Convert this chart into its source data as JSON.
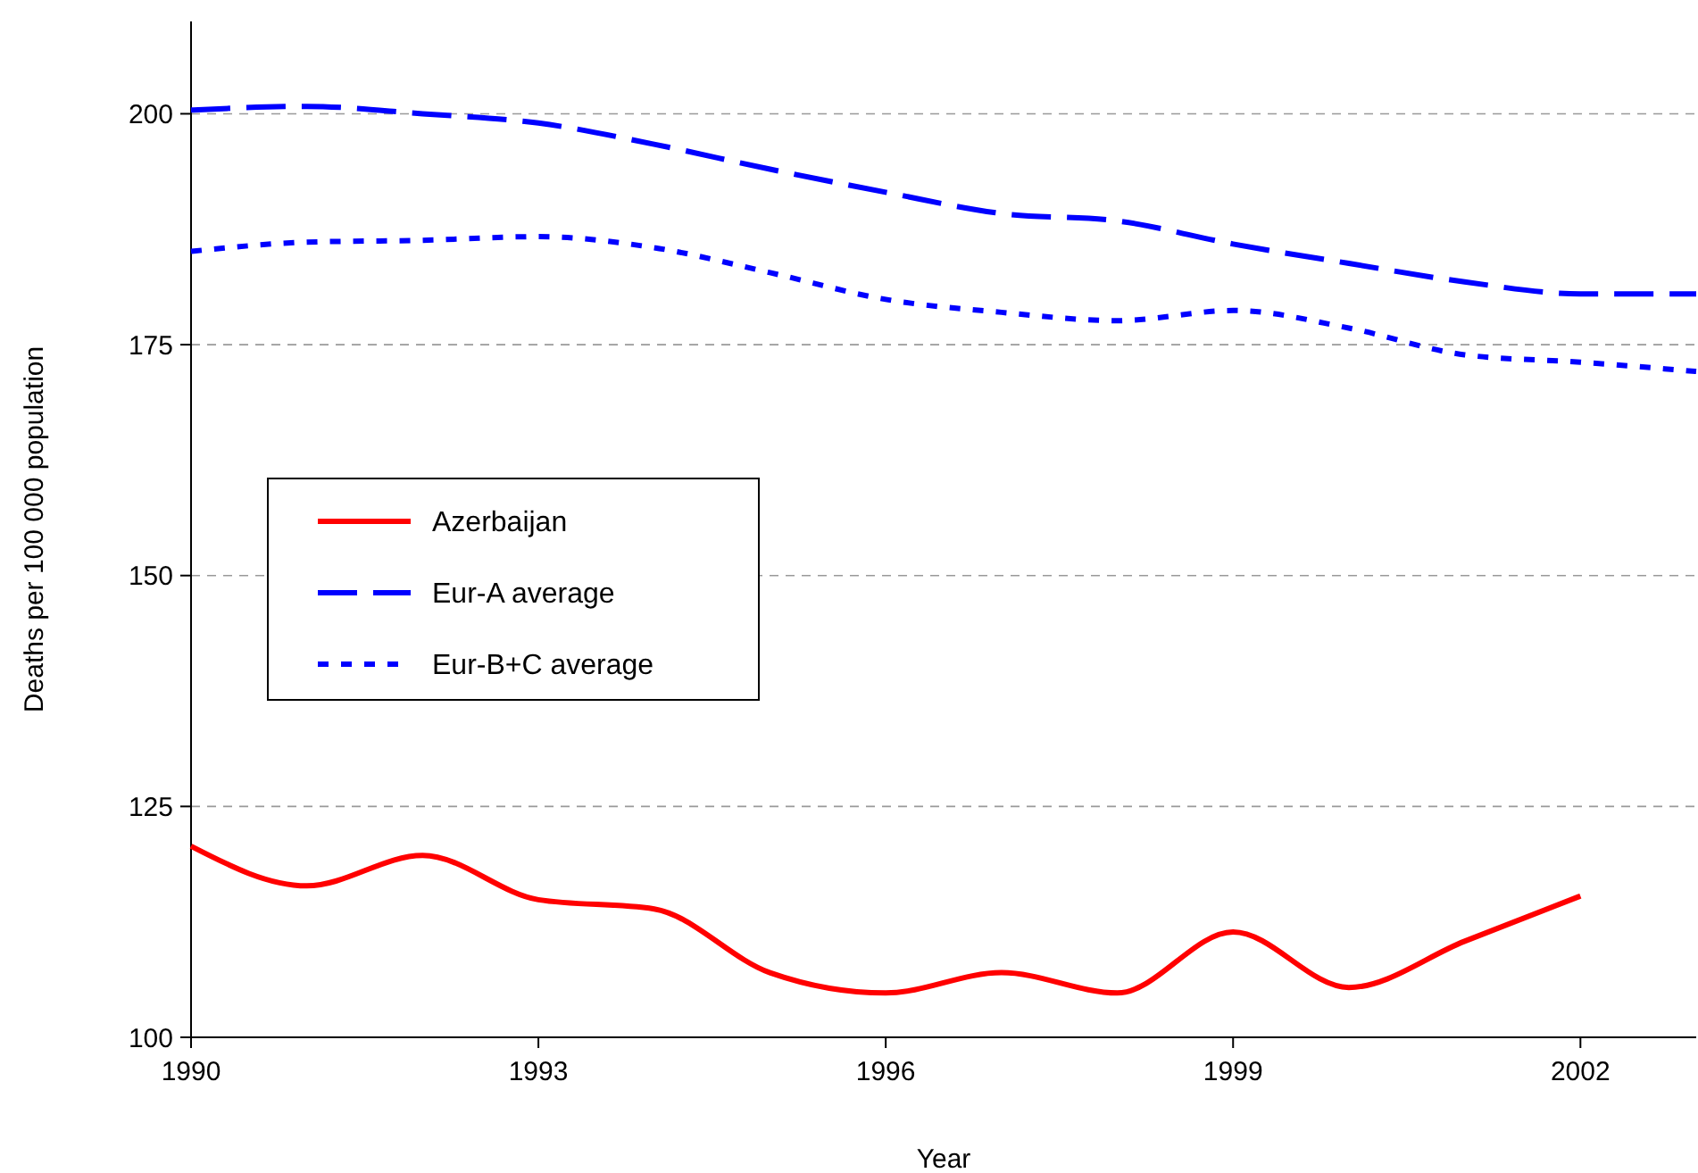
{
  "chart_data": {
    "type": "line",
    "xlabel": "Year",
    "ylabel": "Deaths per 100 000 population",
    "x": [
      1990,
      1991,
      1992,
      1993,
      1994,
      1995,
      1996,
      1997,
      1998,
      1999,
      2000,
      2001,
      2002,
      2003
    ],
    "xlim": [
      1990,
      2003
    ],
    "xticks": [
      1990,
      1993,
      1996,
      1999,
      2002
    ],
    "ylim": [
      100,
      210
    ],
    "yticks": [
      100,
      125,
      150,
      175,
      200
    ],
    "grid": "y",
    "legend": "left",
    "marker": "none",
    "series": [
      {
        "name": "Azerbaijan",
        "color": "#ff0000",
        "line_style": "solid",
        "values": [
          120.7,
          116.4,
          119.7,
          114.9,
          113.9,
          107,
          104.8,
          107,
          104.8,
          111.4,
          105.4,
          110.4,
          115.3,
          null
        ]
      },
      {
        "name": "Eur-A average",
        "color": "#0000ff",
        "line_style": "dashed",
        "values": [
          200.4,
          200.8,
          200,
          199,
          196.7,
          194,
          191.5,
          189.2,
          188.4,
          185.9,
          183.8,
          181.8,
          180.5,
          180.5
        ]
      },
      {
        "name": "Eur-B+C average",
        "color": "#0000ff",
        "line_style": "dotted",
        "values": [
          185.1,
          186.1,
          186.3,
          186.7,
          185.5,
          182.8,
          179.9,
          178.5,
          177.6,
          178.7,
          176.8,
          173.9,
          173.1,
          172.1
        ]
      }
    ]
  }
}
